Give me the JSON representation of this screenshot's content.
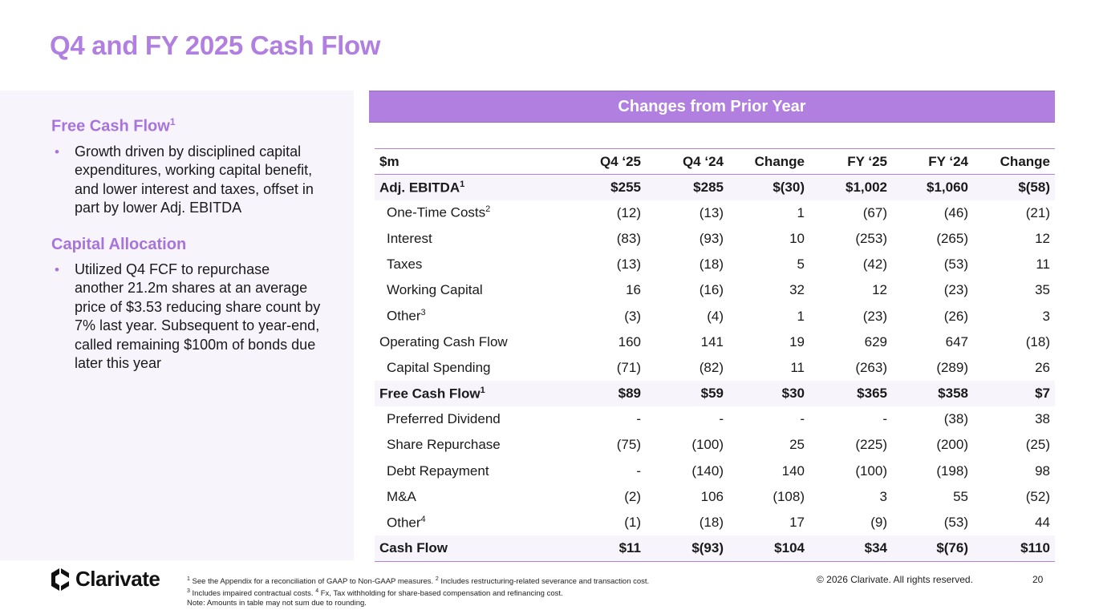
{
  "title": "Q4 and FY 2025 Cash Flow",
  "left": {
    "fcf": {
      "heading": "Free Cash Flow",
      "sup": "1",
      "bullet": "Growth driven by disciplined capital expenditures, working capital benefit, and lower interest and taxes, offset in part by lower Adj. EBITDA"
    },
    "capital": {
      "heading": "Capital Allocation",
      "bullet": "Utilized Q4 FCF to repurchase another 21.2m shares at an average price of $3.53 reducing share count by 7% last year. Subsequent to year-end, called remaining $100m of bonds due later this year"
    }
  },
  "banner": "Changes from Prior Year",
  "table": {
    "headers": [
      "$m",
      "Q4 ‘25",
      "Q4 ‘24",
      "Change",
      "FY ‘25",
      "FY ‘24",
      "Change"
    ],
    "rows": [
      {
        "label": "Adj. EBITDA",
        "sup": "1",
        "cells": [
          "$255",
          "$285",
          "$(30)",
          "$1,002",
          "$1,060",
          "$(58)"
        ]
      },
      {
        "label": "One-Time Costs",
        "sup": "2",
        "cells": [
          "(12)",
          "(13)",
          "1",
          "(67)",
          "(46)",
          "(21)"
        ]
      },
      {
        "label": "Interest",
        "sup": "",
        "cells": [
          "(83)",
          "(93)",
          "10",
          "(253)",
          "(265)",
          "12"
        ]
      },
      {
        "label": "Taxes",
        "sup": "",
        "cells": [
          "(13)",
          "(18)",
          "5",
          "(42)",
          "(53)",
          "11"
        ]
      },
      {
        "label": "Working Capital",
        "sup": "",
        "cells": [
          "16",
          "(16)",
          "32",
          "12",
          "(23)",
          "35"
        ]
      },
      {
        "label": "Other",
        "sup": "3",
        "cells": [
          "(3)",
          "(4)",
          "1",
          "(23)",
          "(26)",
          "3"
        ]
      },
      {
        "label": "Operating Cash Flow",
        "sup": "",
        "cells": [
          "160",
          "141",
          "19",
          "629",
          "647",
          "(18)"
        ]
      },
      {
        "label": "Capital Spending",
        "sup": "",
        "cells": [
          "(71)",
          "(82)",
          "11",
          "(263)",
          "(289)",
          "26"
        ]
      },
      {
        "label": "Free Cash Flow",
        "sup": "1",
        "cells": [
          "$89",
          "$59",
          "$30",
          "$365",
          "$358",
          "$7"
        ]
      },
      {
        "label": "Preferred Dividend",
        "sup": "",
        "cells": [
          "-",
          "-",
          "-",
          "-",
          "(38)",
          "38"
        ]
      },
      {
        "label": "Share Repurchase",
        "sup": "",
        "cells": [
          "(75)",
          "(100)",
          "25",
          "(225)",
          "(200)",
          "(25)"
        ]
      },
      {
        "label": "Debt Repayment",
        "sup": "",
        "cells": [
          "-",
          "(140)",
          "140",
          "(100)",
          "(198)",
          "98"
        ]
      },
      {
        "label": "M&A",
        "sup": "",
        "cells": [
          "(2)",
          "106",
          "(108)",
          "3",
          "55",
          "(52)"
        ]
      },
      {
        "label": "Other",
        "sup": "4",
        "cells": [
          "(1)",
          "(18)",
          "17",
          "(9)",
          "(53)",
          "44"
        ]
      },
      {
        "label": "Cash Flow",
        "sup": "",
        "cells": [
          "$11",
          "$(93)",
          "$104",
          "$34",
          "$(76)",
          "$110"
        ]
      }
    ]
  },
  "footer": {
    "logo_text": "Clarivate",
    "fn1_sup": "1",
    "fn1": " See the Appendix for a reconciliation of GAAP to Non-GAAP measures.  ",
    "fn2_sup": "2",
    "fn2": " Includes restructuring-related severance and transaction cost.",
    "fn3_sup": "3",
    "fn3": " Includes impaired contractual costs.  ",
    "fn4_sup": "4",
    "fn4": " Fx, Tax withholding for share-based compensation and refinancing cost.",
    "note": "Note: Amounts in table may not sum due to rounding.",
    "copyright": "© 2026 Clarivate. All rights reserved.",
    "page_number": "20"
  },
  "colors": {
    "accent": "#b07fe0",
    "panel_bg": "#f8f4fc"
  }
}
